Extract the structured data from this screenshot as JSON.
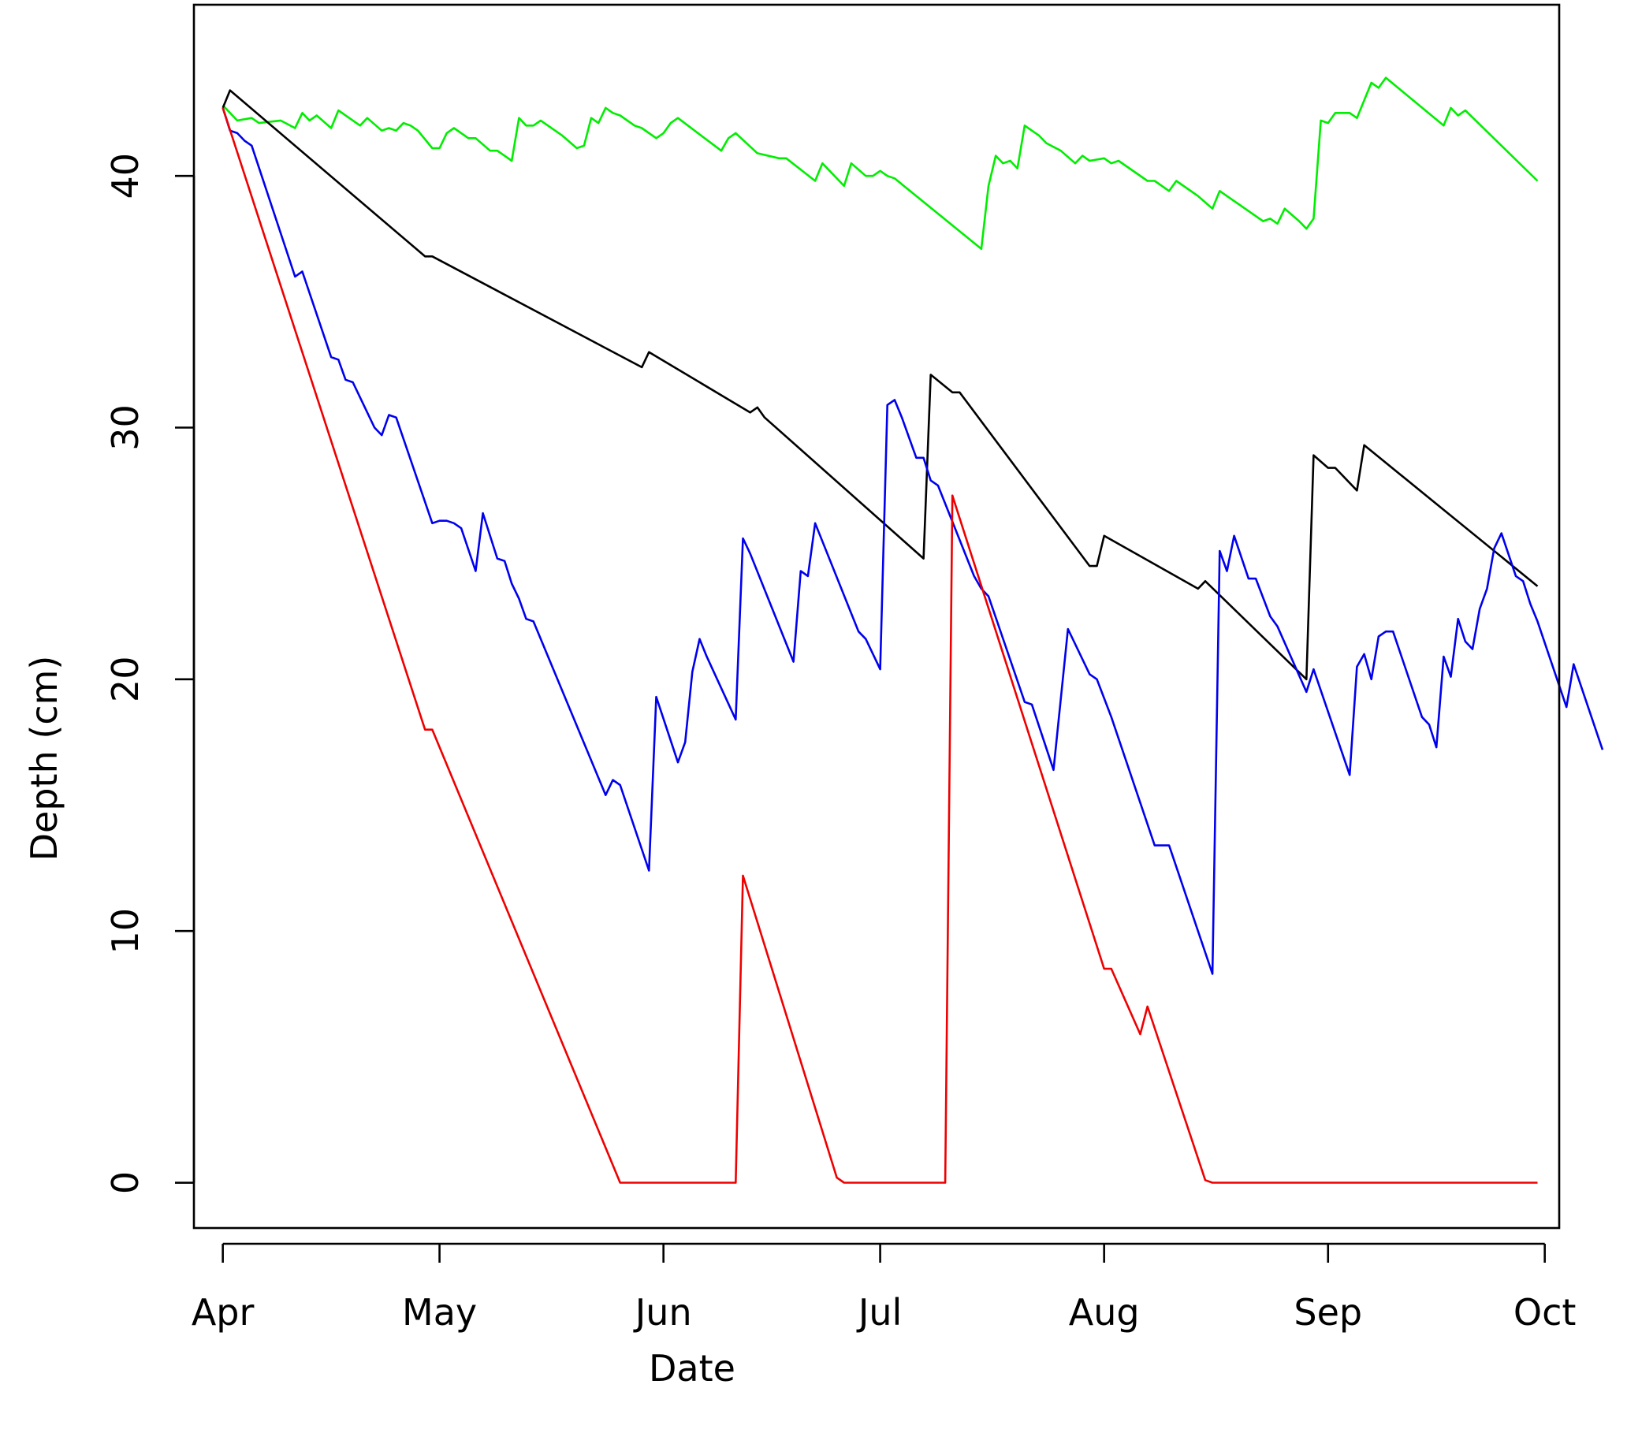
{
  "chart_data": {
    "type": "line",
    "title": "",
    "xlabel": "Date",
    "ylabel": "Depth (cm)",
    "x_ticks": [
      "Apr",
      "May",
      "Jun",
      "Jul",
      "Aug",
      "Sep",
      "Oct"
    ],
    "y_ticks": [
      "0",
      "10",
      "20",
      "30",
      "40"
    ],
    "ylim": [
      -1.8,
      46.8
    ],
    "xlim": [
      "Mar 28",
      "Oct 3"
    ],
    "grid": false,
    "legend": "none",
    "series": [
      {
        "color": "#00ee00",
        "points": [
          [
            "Apr 1",
            42.8
          ],
          [
            "Apr 3",
            42.2
          ],
          [
            "Apr 5",
            42.3
          ],
          [
            "Apr 6",
            42.1
          ],
          [
            "Apr 9",
            42.2
          ],
          [
            "Apr 11",
            41.9
          ],
          [
            "Apr 12",
            42.5
          ],
          [
            "Apr 13",
            42.2
          ],
          [
            "Apr 14",
            42.4
          ],
          [
            "Apr 16",
            41.9
          ],
          [
            "Apr 17",
            42.6
          ],
          [
            "Apr 20",
            42.0
          ],
          [
            "Apr 21",
            42.3
          ],
          [
            "Apr 23",
            41.8
          ],
          [
            "Apr 24",
            41.9
          ],
          [
            "Apr 25",
            41.8
          ],
          [
            "Apr 26",
            42.1
          ],
          [
            "Apr 27",
            42.0
          ],
          [
            "Apr 28",
            41.8
          ],
          [
            "Apr 30",
            41.1
          ],
          [
            "May 1",
            41.1
          ],
          [
            "May 2",
            41.7
          ],
          [
            "May 3",
            41.9
          ],
          [
            "May 4",
            41.7
          ],
          [
            "May 5",
            41.5
          ],
          [
            "May 6",
            41.5
          ],
          [
            "May 8",
            41.0
          ],
          [
            "May 9",
            41.0
          ],
          [
            "May 10",
            40.8
          ],
          [
            "May 11",
            40.6
          ],
          [
            "May 12",
            42.3
          ],
          [
            "May 13",
            42.0
          ],
          [
            "May 14",
            42.0
          ],
          [
            "May 15",
            42.2
          ],
          [
            "May 18",
            41.6
          ],
          [
            "May 20",
            41.1
          ],
          [
            "May 21",
            41.2
          ],
          [
            "May 22",
            42.3
          ],
          [
            "May 23",
            42.1
          ],
          [
            "May 24",
            42.7
          ],
          [
            "May 25",
            42.5
          ],
          [
            "May 26",
            42.4
          ],
          [
            "May 28",
            42.0
          ],
          [
            "May 29",
            41.9
          ],
          [
            "May 31",
            41.5
          ],
          [
            "Jun 1",
            41.7
          ],
          [
            "Jun 2",
            42.1
          ],
          [
            "Jun 3",
            42.3
          ],
          [
            "Jun 9",
            41.0
          ],
          [
            "Jun 10",
            41.5
          ],
          [
            "Jun 11",
            41.7
          ],
          [
            "Jun 14",
            40.9
          ],
          [
            "Jun 17",
            40.7
          ],
          [
            "Jun 18",
            40.7
          ],
          [
            "Jun 22",
            39.8
          ],
          [
            "Jun 23",
            40.5
          ],
          [
            "Jun 26",
            39.6
          ],
          [
            "Jun 27",
            40.5
          ],
          [
            "Jun 29",
            40.0
          ],
          [
            "Jun 30",
            40.0
          ],
          [
            "Jul 1",
            40.2
          ],
          [
            "Jul 2",
            40.0
          ],
          [
            "Jul 3",
            39.9
          ],
          [
            "Jul 15",
            37.1
          ],
          [
            "Jul 16",
            39.6
          ],
          [
            "Jul 17",
            40.8
          ],
          [
            "Jul 18",
            40.5
          ],
          [
            "Jul 19",
            40.6
          ],
          [
            "Jul 20",
            40.3
          ],
          [
            "Jul 21",
            42.0
          ],
          [
            "Jul 23",
            41.6
          ],
          [
            "Jul 24",
            41.3
          ],
          [
            "Jul 26",
            41.0
          ],
          [
            "Jul 28",
            40.5
          ],
          [
            "Jul 29",
            40.8
          ],
          [
            "Jul 30",
            40.6
          ],
          [
            "Aug 1",
            40.7
          ],
          [
            "Aug 2",
            40.5
          ],
          [
            "Aug 3",
            40.6
          ],
          [
            "Aug 7",
            39.8
          ],
          [
            "Aug 8",
            39.8
          ],
          [
            "Aug 10",
            39.4
          ],
          [
            "Aug 11",
            39.8
          ],
          [
            "Aug 14",
            39.2
          ],
          [
            "Aug 16",
            38.7
          ],
          [
            "Aug 17",
            39.4
          ],
          [
            "Aug 23",
            38.2
          ],
          [
            "Aug 24",
            38.3
          ],
          [
            "Aug 25",
            38.1
          ],
          [
            "Aug 26",
            38.7
          ],
          [
            "Aug 28",
            38.2
          ],
          [
            "Aug 29",
            37.9
          ],
          [
            "Aug 30",
            38.3
          ],
          [
            "Aug 31",
            42.2
          ],
          [
            "Sep 1",
            42.1
          ],
          [
            "Sep 2",
            42.5
          ],
          [
            "Sep 4",
            42.5
          ],
          [
            "Sep 5",
            42.3
          ],
          [
            "Sep 6",
            43.0
          ],
          [
            "Sep 7",
            43.7
          ],
          [
            "Sep 8",
            43.5
          ],
          [
            "Sep 9",
            43.9
          ],
          [
            "Sep 17",
            42.0
          ],
          [
            "Sep 18",
            42.7
          ],
          [
            "Sep 19",
            42.4
          ],
          [
            "Sep 20",
            42.6
          ],
          [
            "Sep 30",
            39.8
          ]
        ]
      },
      {
        "color": "#000000",
        "points": [
          [
            "Apr 1",
            42.7
          ],
          [
            "Apr 2",
            43.4
          ],
          [
            "Apr 29",
            36.8
          ],
          [
            "Apr 30",
            36.8
          ],
          [
            "May 29",
            32.4
          ],
          [
            "May 30",
            33.0
          ],
          [
            "Jun 13",
            30.6
          ],
          [
            "Jun 14",
            30.8
          ],
          [
            "Jun 15",
            30.4
          ],
          [
            "Jul 7",
            24.8
          ],
          [
            "Jul 8",
            32.1
          ],
          [
            "Jul 11",
            31.4
          ],
          [
            "Jul 12",
            31.4
          ],
          [
            "Jul 30",
            24.5
          ],
          [
            "Jul 31",
            24.5
          ],
          [
            "Aug 1",
            25.7
          ],
          [
            "Aug 14",
            23.6
          ],
          [
            "Aug 15",
            23.9
          ],
          [
            "Aug 29",
            20.0
          ],
          [
            "Aug 30",
            28.9
          ],
          [
            "Sep 1",
            28.4
          ],
          [
            "Sep 2",
            28.4
          ],
          [
            "Sep 5",
            27.5
          ],
          [
            "Sep 6",
            29.3
          ],
          [
            "Sep 30",
            23.7
          ]
        ]
      },
      {
        "color": "#0000ee",
        "points": [
          [
            "Apr 1",
            42.7
          ],
          [
            "Apr 2",
            41.8
          ],
          [
            "Apr 3",
            41.7
          ],
          [
            "Apr 4",
            41.4
          ],
          [
            "Apr 5",
            41.2
          ],
          [
            "Apr 11",
            36.0
          ],
          [
            "Apr 12",
            36.2
          ],
          [
            "Apr 16",
            32.8
          ],
          [
            "Apr 17",
            32.7
          ],
          [
            "Apr 18",
            31.9
          ],
          [
            "Apr 19",
            31.8
          ],
          [
            "Apr 22",
            30.0
          ],
          [
            "Apr 23",
            29.7
          ],
          [
            "Apr 24",
            30.5
          ],
          [
            "Apr 25",
            30.4
          ],
          [
            "Apr 30",
            26.2
          ],
          [
            "May 1",
            26.3
          ],
          [
            "May 2",
            26.3
          ],
          [
            "May 3",
            26.2
          ],
          [
            "May 4",
            26.0
          ],
          [
            "May 6",
            24.3
          ],
          [
            "May 7",
            26.6
          ],
          [
            "May 9",
            24.8
          ],
          [
            "May 10",
            24.7
          ],
          [
            "May 11",
            23.8
          ],
          [
            "May 12",
            23.2
          ],
          [
            "May 13",
            22.4
          ],
          [
            "May 14",
            22.3
          ],
          [
            "May 24",
            15.4
          ],
          [
            "May 25",
            16.0
          ],
          [
            "May 26",
            15.8
          ],
          [
            "May 30",
            12.4
          ],
          [
            "May 31",
            19.3
          ],
          [
            "Jun 3",
            16.7
          ],
          [
            "Jun 4",
            17.5
          ],
          [
            "Jun 5",
            20.3
          ],
          [
            "Jun 6",
            21.6
          ],
          [
            "Jun 7",
            20.9
          ],
          [
            "Jun 11",
            18.4
          ],
          [
            "Jun 12",
            25.6
          ],
          [
            "Jun 13",
            25.0
          ],
          [
            "Jun 19",
            20.7
          ],
          [
            "Jun 20",
            24.3
          ],
          [
            "Jun 21",
            24.1
          ],
          [
            "Jun 22",
            26.2
          ],
          [
            "Jun 28",
            21.9
          ],
          [
            "Jun 29",
            21.6
          ],
          [
            "Jul 1",
            20.4
          ],
          [
            "Jul 2",
            30.9
          ],
          [
            "Jul 3",
            31.1
          ],
          [
            "Jul 4",
            30.4
          ],
          [
            "Jul 6",
            28.8
          ],
          [
            "Jul 7",
            28.8
          ],
          [
            "Jul 8",
            27.9
          ],
          [
            "Jul 9",
            27.7
          ],
          [
            "Jul 14",
            24.1
          ],
          [
            "Jul 15",
            23.6
          ],
          [
            "Jul 16",
            23.3
          ],
          [
            "Jul 21",
            19.1
          ],
          [
            "Jul 22",
            19.0
          ],
          [
            "Jul 25",
            16.4
          ],
          [
            "Jul 27",
            22.0
          ],
          [
            "Jul 30",
            20.2
          ],
          [
            "Jul 31",
            20.0
          ],
          [
            "Aug 2",
            18.5
          ],
          [
            "Aug 8",
            13.4
          ],
          [
            "Aug 10",
            13.4
          ],
          [
            "Aug 16",
            8.3
          ],
          [
            "Aug 17",
            25.1
          ],
          [
            "Aug 18",
            24.3
          ],
          [
            "Aug 19",
            25.7
          ],
          [
            "Aug 21",
            24.0
          ],
          [
            "Aug 22",
            24.0
          ],
          [
            "Aug 24",
            22.5
          ],
          [
            "Aug 25",
            22.1
          ],
          [
            "Aug 29",
            19.5
          ],
          [
            "Aug 30",
            20.4
          ],
          [
            "Sep 4",
            16.2
          ],
          [
            "Sep 5",
            20.5
          ],
          [
            "Sep 6",
            21.0
          ],
          [
            "Sep 7",
            20.0
          ],
          [
            "Sep 8",
            21.7
          ],
          [
            "Sep 9",
            21.9
          ],
          [
            "Sep 10",
            21.9
          ],
          [
            "Sep 14",
            18.5
          ],
          [
            "Sep 15",
            18.2
          ],
          [
            "Sep 16",
            17.3
          ],
          [
            "Sep 17",
            20.9
          ],
          [
            "Sep 18",
            20.1
          ],
          [
            "Sep 19",
            22.4
          ],
          [
            "Sep 20",
            21.5
          ],
          [
            "Sep 21",
            21.2
          ],
          [
            "Sep 22",
            22.8
          ],
          [
            "Sep 23",
            23.6
          ],
          [
            "Sep 24",
            25.2
          ],
          [
            "Sep 25",
            25.8
          ],
          [
            "Sep 27",
            24.1
          ],
          [
            "Sep 28",
            23.9
          ],
          [
            "Sep 29",
            23.0
          ],
          [
            "Sep 30",
            22.3
          ],
          [
            "Oct 4",
            18.9
          ],
          [
            "Oct 5",
            20.6
          ],
          [
            "Oct 9",
            17.2
          ]
        ]
      },
      {
        "color": "#ee0000",
        "points": [
          [
            "Apr 1",
            42.7
          ],
          [
            "Apr 29",
            18.0
          ],
          [
            "Apr 30",
            18.0
          ],
          [
            "May 26",
            0.0
          ],
          [
            "Jun 11",
            0.0
          ],
          [
            "Jun 12",
            12.2
          ],
          [
            "Jun 25",
            0.2
          ],
          [
            "Jun 26",
            0.0
          ],
          [
            "Jul 10",
            0.0
          ],
          [
            "Jul 11",
            27.3
          ],
          [
            "Aug 1",
            8.5
          ],
          [
            "Aug 2",
            8.5
          ],
          [
            "Aug 6",
            5.9
          ],
          [
            "Aug 7",
            7.0
          ],
          [
            "Aug 15",
            0.1
          ],
          [
            "Aug 16",
            0.0
          ],
          [
            "Sep 30",
            0.0
          ]
        ]
      }
    ]
  }
}
